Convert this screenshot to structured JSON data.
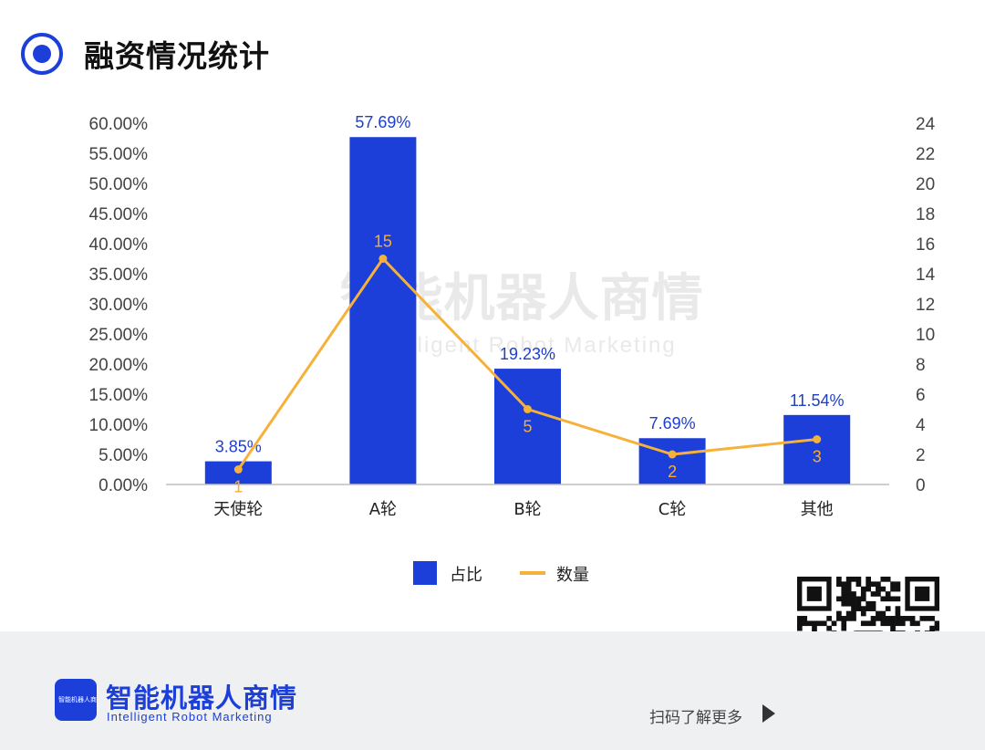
{
  "header": {
    "title": "融资情况统计",
    "icon": "target-ring-icon"
  },
  "watermark": {
    "cn": "智能机器人商情",
    "en": "Intelligent Robot Marketing"
  },
  "colors": {
    "bar": "#1c3fd9",
    "line": "#f6b13a",
    "bar_label": "#1e3fc8",
    "brand": "#1c3fd9"
  },
  "chart_data": {
    "type": "bar",
    "categories": [
      "天使轮",
      "A轮",
      "B轮",
      "C轮",
      "其他"
    ],
    "series": [
      {
        "name": "占比",
        "type": "bar",
        "axis": "left",
        "values": [
          3.85,
          57.69,
          19.23,
          7.69,
          11.54
        ],
        "labels": [
          "3.85%",
          "57.69%",
          "19.23%",
          "7.69%",
          "11.54%"
        ]
      },
      {
        "name": "数量",
        "type": "line",
        "axis": "right",
        "values": [
          1,
          15,
          5,
          2,
          3
        ],
        "labels": [
          "1",
          "15",
          "5",
          "2",
          "3"
        ]
      }
    ],
    "ylim_left": [
      0,
      60
    ],
    "ylim_right": [
      0,
      24
    ],
    "left_ticks": [
      "0.00%",
      "5.00%",
      "10.00%",
      "15.00%",
      "20.00%",
      "25.00%",
      "30.00%",
      "35.00%",
      "40.00%",
      "45.00%",
      "50.00%",
      "55.00%",
      "60.00%"
    ],
    "right_ticks": [
      "0",
      "2",
      "4",
      "6",
      "8",
      "10",
      "12",
      "14",
      "16",
      "18",
      "20",
      "22",
      "24"
    ],
    "legend": [
      "占比",
      "数量"
    ],
    "legend_position": "bottom",
    "grid": false
  },
  "footer": {
    "brand_cn": "智能机器人商情",
    "brand_en": "Intelligent Robot Marketing",
    "logo_icon_text": "智能机器人商情",
    "scan_text": "扫码了解更多",
    "arrow_icon": "play-arrow-icon",
    "qr_icon": "qr-code-icon"
  }
}
